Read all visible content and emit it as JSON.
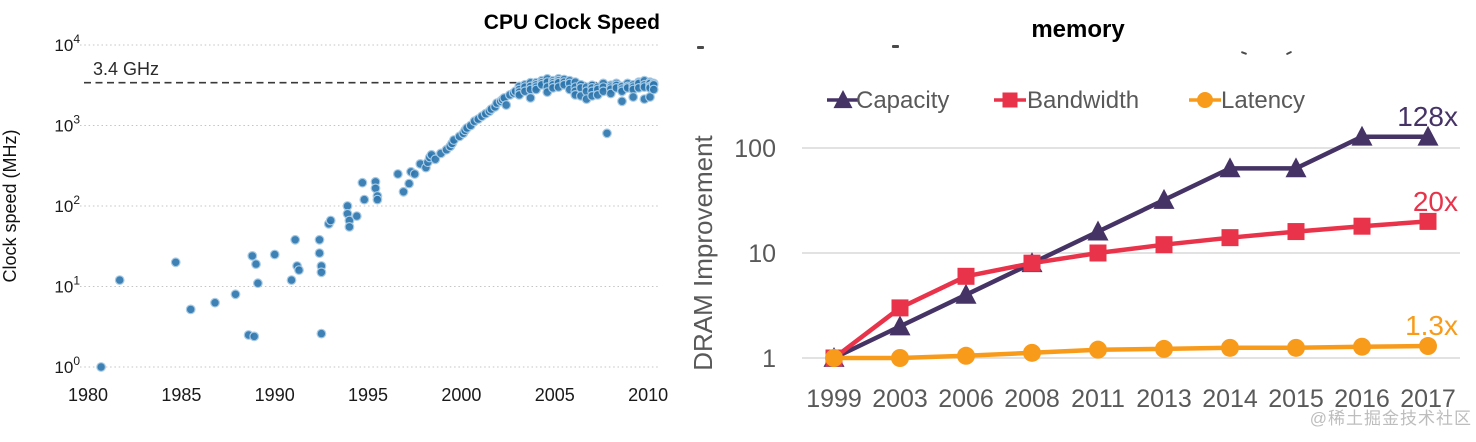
{
  "watermark": "@稀土掘金技术社区",
  "chart_data": [
    {
      "type": "scatter",
      "title": "CPU Clock Speed",
      "xlabel": "",
      "ylabel": "Clock speed (MHz)",
      "x_ticks": [
        "1980",
        "1985",
        "1990",
        "1995",
        "2000",
        "2005",
        "2010"
      ],
      "xlim": [
        1980,
        2011
      ],
      "y_scale": "log",
      "y_tick_exponents": [
        0,
        1,
        2,
        3,
        4
      ],
      "ylim_mhz": [
        1,
        10000
      ],
      "grid": "horizontal-dotted",
      "point_color": "#2E76AE",
      "annotation": {
        "label": "3.4 GHz",
        "value_mhz": 3400,
        "style": "dashed-line"
      },
      "points_year_mhz": [
        [
          1980.7,
          1
        ],
        [
          1981.7,
          12
        ],
        [
          1984.7,
          20
        ],
        [
          1985.5,
          5.2
        ],
        [
          1986.8,
          6.3
        ],
        [
          1987.9,
          8
        ],
        [
          1988.6,
          2.5
        ],
        [
          1988.9,
          2.4
        ],
        [
          1988.8,
          24
        ],
        [
          1989.0,
          19
        ],
        [
          1989.1,
          11
        ],
        [
          1990.0,
          25
        ],
        [
          1990.9,
          12
        ],
        [
          1991.1,
          38
        ],
        [
          1991.2,
          18
        ],
        [
          1991.3,
          16
        ],
        [
          1992.4,
          38
        ],
        [
          1992.4,
          26
        ],
        [
          1992.5,
          18
        ],
        [
          1992.5,
          15
        ],
        [
          1992.5,
          2.6
        ],
        [
          1992.9,
          60
        ],
        [
          1993.0,
          66
        ],
        [
          1993.9,
          100
        ],
        [
          1993.9,
          80
        ],
        [
          1994.0,
          66
        ],
        [
          1994.0,
          55
        ],
        [
          1994.4,
          75
        ],
        [
          1994.7,
          195
        ],
        [
          1994.8,
          120
        ],
        [
          1995.4,
          200
        ],
        [
          1995.4,
          166
        ],
        [
          1995.5,
          133
        ],
        [
          1995.5,
          120
        ],
        [
          1996.6,
          250
        ],
        [
          1996.9,
          150
        ],
        [
          1997.2,
          190
        ],
        [
          1997.3,
          266
        ],
        [
          1997.5,
          250
        ],
        [
          1997.8,
          333
        ],
        [
          1998.1,
          300
        ],
        [
          1998.2,
          350
        ],
        [
          1998.3,
          400
        ],
        [
          1998.4,
          433
        ],
        [
          1998.6,
          380
        ],
        [
          1998.9,
          450
        ],
        [
          1999.2,
          500
        ],
        [
          1999.4,
          550
        ],
        [
          1999.5,
          600
        ],
        [
          1999.6,
          660
        ],
        [
          1999.9,
          733
        ],
        [
          2000.1,
          800
        ],
        [
          2000.2,
          870
        ],
        [
          2000.3,
          930
        ],
        [
          2000.5,
          1000
        ],
        [
          2000.7,
          1130
        ],
        [
          2000.9,
          1200
        ],
        [
          2001.1,
          1300
        ],
        [
          2001.3,
          1400
        ],
        [
          2001.5,
          1500
        ],
        [
          2001.6,
          1600
        ],
        [
          2001.8,
          1700
        ],
        [
          2001.9,
          1900
        ],
        [
          2002.1,
          2000
        ],
        [
          2002.2,
          2100
        ],
        [
          2002.3,
          2200
        ],
        [
          2002.4,
          1800
        ],
        [
          2002.6,
          2400
        ],
        [
          2002.8,
          2530
        ],
        [
          2002.9,
          2660
        ],
        [
          2003.1,
          3060
        ],
        [
          2003.1,
          2800
        ],
        [
          2003.1,
          2600
        ],
        [
          2003.1,
          2400
        ],
        [
          2003.4,
          3200
        ],
        [
          2003.4,
          3000
        ],
        [
          2003.4,
          2660
        ],
        [
          2003.7,
          3400
        ],
        [
          2003.7,
          3060
        ],
        [
          2003.7,
          2800
        ],
        [
          2003.7,
          2200
        ],
        [
          2004.0,
          3400
        ],
        [
          2004.0,
          3200
        ],
        [
          2004.0,
          3000
        ],
        [
          2004.0,
          2800
        ],
        [
          2004.3,
          3600
        ],
        [
          2004.3,
          3400
        ],
        [
          2004.3,
          3200
        ],
        [
          2004.6,
          3800
        ],
        [
          2004.6,
          3460
        ],
        [
          2004.6,
          3000
        ],
        [
          2004.6,
          2600
        ],
        [
          2004.9,
          3600
        ],
        [
          2004.9,
          3400
        ],
        [
          2004.9,
          3200
        ],
        [
          2004.9,
          2930
        ],
        [
          2005.2,
          3800
        ],
        [
          2005.2,
          3600
        ],
        [
          2005.2,
          3400
        ],
        [
          2005.2,
          3000
        ],
        [
          2005.5,
          3730
        ],
        [
          2005.5,
          3460
        ],
        [
          2005.5,
          3200
        ],
        [
          2005.8,
          3600
        ],
        [
          2005.8,
          3330
        ],
        [
          2005.8,
          2800
        ],
        [
          2006.1,
          3460
        ],
        [
          2006.1,
          3000
        ],
        [
          2006.1,
          2660
        ],
        [
          2006.1,
          2400
        ],
        [
          2006.4,
          3200
        ],
        [
          2006.4,
          2930
        ],
        [
          2006.4,
          2330
        ],
        [
          2006.7,
          3000
        ],
        [
          2006.7,
          2660
        ],
        [
          2006.7,
          2130
        ],
        [
          2007.0,
          3160
        ],
        [
          2007.0,
          2930
        ],
        [
          2007.0,
          2660
        ],
        [
          2007.0,
          2330
        ],
        [
          2007.3,
          3000
        ],
        [
          2007.3,
          2800
        ],
        [
          2007.3,
          2400
        ],
        [
          2007.6,
          3330
        ],
        [
          2007.6,
          3000
        ],
        [
          2007.6,
          2660
        ],
        [
          2007.8,
          800
        ],
        [
          2008.0,
          3160
        ],
        [
          2008.0,
          3000
        ],
        [
          2008.0,
          2830
        ],
        [
          2008.0,
          2500
        ],
        [
          2008.3,
          3330
        ],
        [
          2008.3,
          3160
        ],
        [
          2008.3,
          2930
        ],
        [
          2008.6,
          3060
        ],
        [
          2008.6,
          2830
        ],
        [
          2008.6,
          2660
        ],
        [
          2008.6,
          2000
        ],
        [
          2008.9,
          3330
        ],
        [
          2008.9,
          3060
        ],
        [
          2008.9,
          2930
        ],
        [
          2009.2,
          3200
        ],
        [
          2009.2,
          3000
        ],
        [
          2009.2,
          2800
        ],
        [
          2009.2,
          2260
        ],
        [
          2009.5,
          3460
        ],
        [
          2009.5,
          3330
        ],
        [
          2009.5,
          2930
        ],
        [
          2009.8,
          3600
        ],
        [
          2009.8,
          3200
        ],
        [
          2009.8,
          3000
        ],
        [
          2009.8,
          2130
        ],
        [
          2010.1,
          3460
        ],
        [
          2010.1,
          3330
        ],
        [
          2010.1,
          3060
        ],
        [
          2010.1,
          2930
        ],
        [
          2010.1,
          2260
        ],
        [
          2010.3,
          3330
        ],
        [
          2010.3,
          3200
        ],
        [
          2010.3,
          2800
        ]
      ]
    },
    {
      "type": "line",
      "title": "memory",
      "xlabel": "",
      "ylabel": "DRAM Improvement",
      "y_scale": "log",
      "y_ticks": [
        1,
        10,
        100
      ],
      "ylim": [
        1,
        200
      ],
      "grid": "horizontal",
      "legend_position": "top",
      "categories": [
        "1999",
        "2003",
        "2006",
        "2008",
        "2011",
        "2013",
        "2014",
        "2015",
        "2016",
        "2017"
      ],
      "series": [
        {
          "name": "Capacity",
          "marker": "triangle",
          "color": "#463366",
          "end_label": "128x",
          "values": [
            1,
            2,
            4,
            8,
            16,
            32,
            64,
            64,
            128,
            128
          ]
        },
        {
          "name": "Bandwidth",
          "marker": "square",
          "color": "#E8334A",
          "end_label": "20x",
          "values": [
            1,
            3,
            6,
            8,
            10,
            12,
            14,
            16,
            18,
            20
          ]
        },
        {
          "name": "Latency",
          "marker": "circle",
          "color": "#F89B1B",
          "end_label": "1.3x",
          "values": [
            1,
            1,
            1.05,
            1.12,
            1.2,
            1.22,
            1.25,
            1.25,
            1.28,
            1.3
          ]
        }
      ]
    }
  ]
}
